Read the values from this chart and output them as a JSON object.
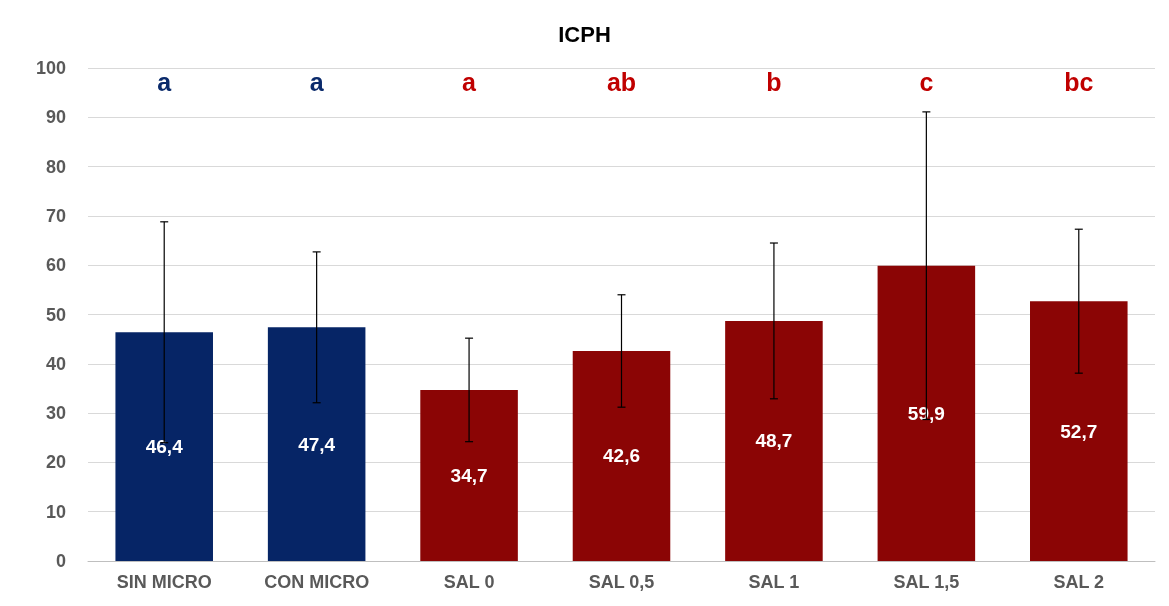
{
  "chart_data": {
    "type": "bar",
    "title": "ICPH",
    "categories": [
      "SIN MICRO",
      "CON MICRO",
      "SAL 0",
      "SAL 0,5",
      "SAL 1",
      "SAL 1,5",
      "SAL 2"
    ],
    "values": [
      46.4,
      47.4,
      34.7,
      42.6,
      48.7,
      59.9,
      52.7
    ],
    "value_labels": [
      "46,4",
      "47,4",
      "34,7",
      "42,6",
      "48,7",
      "59,9",
      "52,7"
    ],
    "colors": [
      "#062566",
      "#062566",
      "#8b0505",
      "#8b0505",
      "#8b0505",
      "#8b0505",
      "#8b0505"
    ],
    "errors": [
      22.4,
      15.3,
      10.5,
      11.4,
      15.8,
      31.2,
      14.6
    ],
    "annotations": [
      "a",
      "a",
      "a",
      "ab",
      "b",
      "c",
      "bc"
    ],
    "ylim": [
      0,
      100
    ],
    "yticks": [
      0,
      10,
      20,
      30,
      40,
      50,
      60,
      70,
      80,
      90,
      100
    ],
    "grid": "y"
  }
}
